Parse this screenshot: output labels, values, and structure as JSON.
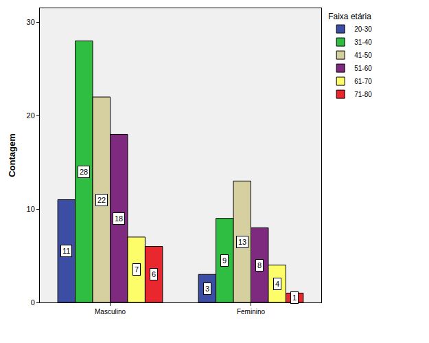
{
  "chart_data": {
    "type": "bar",
    "y_label": "Contagem",
    "legend_title": "Faixa etária",
    "categories": [
      "Masculino",
      "Feminino"
    ],
    "series": [
      {
        "name": "20-30",
        "color": "#3b4ea3",
        "values": [
          11,
          3
        ]
      },
      {
        "name": "31-40",
        "color": "#2fbd42",
        "values": [
          28,
          9
        ]
      },
      {
        "name": "41-50",
        "color": "#d6cf9f",
        "values": [
          22,
          13
        ]
      },
      {
        "name": "51-60",
        "color": "#7e2a7f",
        "values": [
          18,
          8
        ]
      },
      {
        "name": "61-70",
        "color": "#fdfd6a",
        "values": [
          7,
          4
        ]
      },
      {
        "name": "71-80",
        "color": "#e8272f",
        "values": [
          6,
          1
        ]
      }
    ],
    "ylim": [
      0,
      31.5
    ],
    "yticks": [
      0,
      10,
      20,
      30
    ],
    "grid": false,
    "legend": "right",
    "data_labels": true
  }
}
